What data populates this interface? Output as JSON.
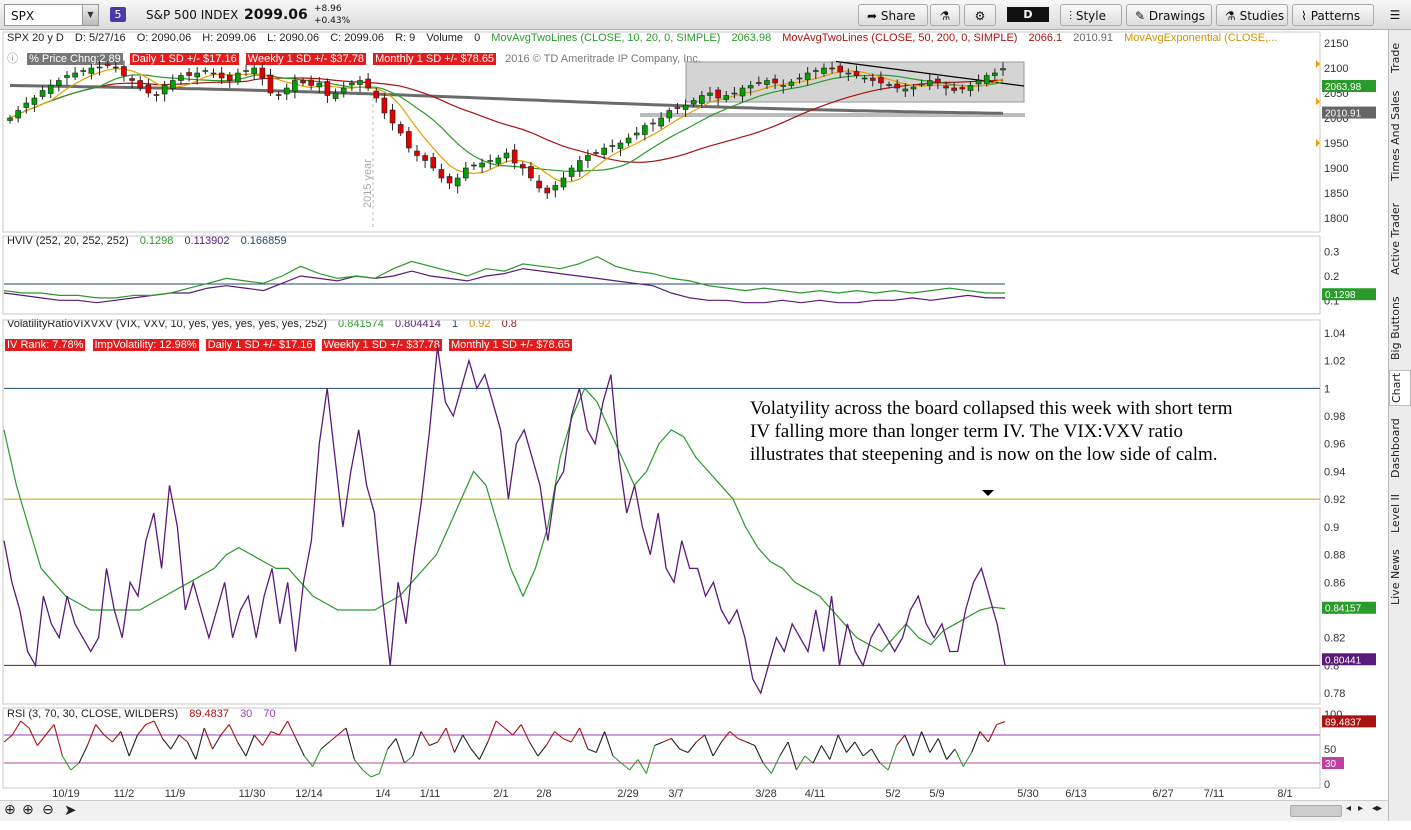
{
  "toolbar": {
    "symbol": "SPX",
    "link_badge": "5",
    "description": "S&P 500 INDEX",
    "last": "2099.06",
    "change": "+8.96",
    "change_pct": "+0.43%",
    "share": "Share",
    "period": "D",
    "style": "Style",
    "drawings": "Drawings",
    "studies": "Studies",
    "patterns": "Patterns"
  },
  "header": {
    "symbol_period": "SPX 20 y D",
    "date": "D: 5/27/16",
    "open": "O: 2090.06",
    "high": "H: 2099.06",
    "low": "L: 2090.06",
    "close": "C: 2099.06",
    "range": "R: 9",
    "volume_label": "Volume",
    "volume": "0",
    "ma1": "MovAvgTwoLines (CLOSE, 10, 20, 0, SIMPLE)",
    "ma1_val": "2063.98",
    "ma2": "MovAvgTwoLines (CLOSE, 50, 200, 0, SIMPLE)",
    "ma2_val1": "2066.1",
    "ma2_val2": "2010.91",
    "ma3": "MovAvgExponential (CLOSE,..."
  },
  "price_row2": {
    "pct_chg": "% Price Chng:2.89",
    "daily": "Daily 1 SD +/- $17.16",
    "weekly": "Weekly 1 SD +/- $37.78",
    "monthly": "Monthly 1 SD +/- $78.65",
    "copyright": "2016 © TD Ameritrade IP Company, Inc.",
    "year_marker": "2015 year"
  },
  "hviv": {
    "label": "HVIV (252, 20, 252, 252)",
    "v1": "0.1298",
    "v2": "0.113902",
    "v3": "0.166859"
  },
  "volratio": {
    "label": "VolatilityRatioVIXVXV (VIX, VXV, 10, yes, yes, yes, yes, yes, 252)",
    "v1": "0.841574",
    "v2": "0.804414",
    "v3": "1",
    "v4": "0.92",
    "v5": "0.8"
  },
  "volratio_row2": {
    "ivrank": "IV Rank: 7.78%",
    "impvol": "ImpVolatility: 12.98%",
    "daily": "Daily 1 SD +/- $17.16",
    "weekly": "Weekly 1 SD +/- $37.78",
    "monthly": "Monthly 1 SD +/- $78.65"
  },
  "rsi": {
    "label": "RSI (3, 70, 30, CLOSE, WILDERS)",
    "v1": "89.4837",
    "v2": "30",
    "v3": "70"
  },
  "annotation": "Volatyility across the board collapsed this week with short term IV falling more than longer term IV.  The VIX:VXV ratio illustrates that steepening and is now on the low side of calm.",
  "right_tabs": [
    "Trade",
    "Times And Sales",
    "Active Trader",
    "Big Buttons",
    "Chart",
    "Dashboard",
    "Level II",
    "Live News"
  ],
  "colors": {
    "up": "#00a000",
    "down": "#e00000",
    "ma_fast": "#e0a000",
    "ma_slow": "#2a9a2a",
    "ma50": "#aa1111",
    "ma200": "#6b6b6b",
    "purple": "#5a1a7a",
    "green": "#2a9a2a"
  },
  "chart_data": [
    {
      "type": "candlestick",
      "title": "SPX 20 y D",
      "x_ticks": [
        "10/19",
        "11/2",
        "11/9",
        "11/30",
        "12/14",
        "1/4",
        "1/11",
        "2/1",
        "2/8",
        "2/29",
        "3/7",
        "3/28",
        "4/11",
        "5/2",
        "5/9",
        "5/30",
        "6/13",
        "6/27",
        "7/11",
        "8/1"
      ],
      "y_ticks": [
        1800,
        1850,
        1900,
        1950,
        2000,
        2050,
        2100,
        2150
      ],
      "ylim": [
        1780,
        2160
      ],
      "close": [
        2000,
        2015,
        2030,
        2040,
        2055,
        2065,
        2075,
        2085,
        2090,
        2095,
        2100,
        2102,
        2105,
        2100,
        2085,
        2075,
        2060,
        2050,
        2045,
        2065,
        2075,
        2085,
        2085,
        2090,
        2095,
        2090,
        2080,
        2075,
        2090,
        2095,
        2100,
        2080,
        2050,
        2045,
        2060,
        2075,
        2070,
        2065,
        2070,
        2045,
        2050,
        2060,
        2070,
        2075,
        2060,
        2040,
        2010,
        1990,
        1970,
        1940,
        1925,
        1915,
        1900,
        1880,
        1870,
        1880,
        1900,
        1905,
        1910,
        1915,
        1920,
        1930,
        1910,
        1900,
        1880,
        1860,
        1850,
        1865,
        1880,
        1900,
        1915,
        1925,
        1930,
        1940,
        1945,
        1950,
        1960,
        1970,
        1985,
        1990,
        2000,
        2015,
        2020,
        2025,
        2035,
        2045,
        2050,
        2040,
        2045,
        2050,
        2060,
        2065,
        2070,
        2075,
        2070,
        2065,
        2072,
        2080,
        2090,
        2095,
        2100,
        2098,
        2092,
        2090,
        2085,
        2080,
        2075,
        2070,
        2065,
        2060,
        2058,
        2062,
        2068,
        2075,
        2070,
        2060,
        2055,
        2058,
        2065,
        2075,
        2085,
        2090,
        2099
      ],
      "series": [
        {
          "name": "MovAvgTwoLines 10",
          "last": 2063.98
        },
        {
          "name": "MovAvgTwoLines 20"
        },
        {
          "name": "MovAvgTwoLines 50",
          "last": 2066.1
        },
        {
          "name": "MovAvgTwoLines 200",
          "last": 2010.91
        }
      ],
      "price_labels": [
        "2063.98",
        "2010.91"
      ]
    },
    {
      "type": "line",
      "title": "HVIV (252, 20, 252, 252)",
      "y_ticks": [
        0.1,
        0.2,
        0.3
      ],
      "ylim": [
        0.06,
        0.34
      ],
      "series": [
        {
          "name": "HV",
          "values": [
            0.14,
            0.13,
            0.13,
            0.12,
            0.12,
            0.11,
            0.11,
            0.12,
            0.12,
            0.13,
            0.15,
            0.17,
            0.19,
            0.18,
            0.17,
            0.2,
            0.24,
            0.21,
            0.19,
            0.2,
            0.19,
            0.23,
            0.26,
            0.24,
            0.22,
            0.2,
            0.23,
            0.22,
            0.25,
            0.24,
            0.23,
            0.25,
            0.28,
            0.24,
            0.22,
            0.21,
            0.19,
            0.18,
            0.16,
            0.15,
            0.14,
            0.15,
            0.14,
            0.13,
            0.14,
            0.13,
            0.14,
            0.13,
            0.14,
            0.13,
            0.14,
            0.15,
            0.14,
            0.13,
            0.13
          ]
        },
        {
          "name": "IV",
          "values": [
            0.13,
            0.12,
            0.11,
            0.1,
            0.1,
            0.09,
            0.1,
            0.11,
            0.12,
            0.13,
            0.13,
            0.15,
            0.16,
            0.15,
            0.14,
            0.17,
            0.2,
            0.19,
            0.18,
            0.2,
            0.19,
            0.2,
            0.22,
            0.2,
            0.19,
            0.18,
            0.2,
            0.21,
            0.23,
            0.22,
            0.21,
            0.2,
            0.19,
            0.18,
            0.17,
            0.16,
            0.13,
            0.11,
            0.1,
            0.1,
            0.09,
            0.09,
            0.1,
            0.09,
            0.1,
            0.09,
            0.09,
            0.1,
            0.1,
            0.11,
            0.1,
            0.11,
            0.12,
            0.11,
            0.11
          ]
        },
        {
          "name": "IV avg",
          "values": [
            0.167,
            0.167
          ]
        }
      ],
      "price_labels": [
        "0.1298"
      ]
    },
    {
      "type": "line",
      "title": "VolatilityRatioVIXVXV (VIX, VXV, 10, yes, yes, yes, yes, yes, 252)",
      "y_ticks": [
        0.78,
        0.8,
        0.82,
        0.84,
        0.86,
        0.88,
        0.9,
        0.92,
        0.94,
        0.96,
        0.98,
        1,
        1.02,
        1.04
      ],
      "ylim": [
        0.775,
        1.045
      ],
      "levels": [
        1.0,
        0.92,
        0.8
      ],
      "series": [
        {
          "name": "ratio",
          "values": [
            0.89,
            0.86,
            0.84,
            0.81,
            0.8,
            0.85,
            0.83,
            0.82,
            0.85,
            0.83,
            0.82,
            0.81,
            0.82,
            0.87,
            0.84,
            0.82,
            0.86,
            0.85,
            0.89,
            0.91,
            0.87,
            0.93,
            0.9,
            0.84,
            0.86,
            0.84,
            0.82,
            0.84,
            0.86,
            0.82,
            0.84,
            0.85,
            0.82,
            0.85,
            0.87,
            0.83,
            0.86,
            0.81,
            0.86,
            0.89,
            0.96,
            1.0,
            0.95,
            0.9,
            0.94,
            0.97,
            0.93,
            0.91,
            0.85,
            0.8,
            0.86,
            0.83,
            0.88,
            0.92,
            0.97,
            1.03,
            0.99,
            0.98,
            1.0,
            1.02,
            1.0,
            1.01,
            0.99,
            0.97,
            0.92,
            0.96,
            0.97,
            0.95,
            0.93,
            0.89,
            0.93,
            0.94,
            0.98,
            1.0,
            0.97,
            0.96,
            0.99,
            1.01,
            0.95,
            0.91,
            0.93,
            0.9,
            0.88,
            0.91,
            0.87,
            0.86,
            0.89,
            0.87,
            0.87,
            0.85,
            0.86,
            0.84,
            0.83,
            0.84,
            0.82,
            0.79,
            0.78,
            0.8,
            0.82,
            0.81,
            0.83,
            0.82,
            0.81,
            0.84,
            0.81,
            0.85,
            0.8,
            0.83,
            0.81,
            0.8,
            0.82,
            0.83,
            0.82,
            0.81,
            0.82,
            0.84,
            0.85,
            0.83,
            0.82,
            0.83,
            0.81,
            0.81,
            0.84,
            0.86,
            0.87,
            0.85,
            0.83,
            0.8
          ]
        },
        {
          "name": "avg",
          "values": [
            0.97,
            0.93,
            0.9,
            0.87,
            0.86,
            0.85,
            0.845,
            0.84,
            0.84,
            0.84,
            0.84,
            0.84,
            0.845,
            0.85,
            0.855,
            0.86,
            0.865,
            0.87,
            0.88,
            0.885,
            0.88,
            0.875,
            0.87,
            0.87,
            0.86,
            0.85,
            0.845,
            0.84,
            0.84,
            0.84,
            0.84,
            0.845,
            0.85,
            0.86,
            0.87,
            0.88,
            0.9,
            0.92,
            0.94,
            0.93,
            0.9,
            0.87,
            0.85,
            0.87,
            0.9,
            0.95,
            0.98,
            1.0,
            0.99,
            0.97,
            0.95,
            0.93,
            0.94,
            0.96,
            0.97,
            0.965,
            0.95,
            0.94,
            0.93,
            0.92,
            0.9,
            0.885,
            0.875,
            0.87,
            0.86,
            0.855,
            0.85,
            0.84,
            0.83,
            0.82,
            0.815,
            0.81,
            0.82,
            0.83,
            0.82,
            0.815,
            0.825,
            0.83,
            0.835,
            0.84,
            0.842,
            0.841
          ]
        }
      ],
      "price_labels": [
        "0.84157",
        "0.80441"
      ]
    },
    {
      "type": "line",
      "title": "RSI (3, 70, 30, CLOSE, WILDERS)",
      "y_ticks": [
        0,
        50,
        100
      ],
      "ylim": [
        0,
        100
      ],
      "levels": [
        70,
        30
      ],
      "series": [
        {
          "name": "RSI",
          "values": [
            60,
            70,
            90,
            80,
            55,
            70,
            85,
            40,
            20,
            30,
            55,
            85,
            70,
            60,
            75,
            40,
            70,
            85,
            90,
            65,
            50,
            70,
            60,
            35,
            80,
            50,
            70,
            85,
            60,
            40,
            70,
            55,
            75,
            70,
            90,
            65,
            40,
            25,
            50,
            60,
            70,
            80,
            35,
            20,
            10,
            15,
            50,
            65,
            30,
            40,
            75,
            55,
            60,
            80,
            45,
            70,
            50,
            35,
            60,
            90,
            80,
            70,
            85,
            60,
            40,
            55,
            75,
            65,
            60,
            80,
            50,
            45,
            75,
            40,
            30,
            20,
            35,
            15,
            55,
            60,
            65,
            50,
            45,
            60,
            70,
            40,
            60,
            75,
            65,
            60,
            55,
            30,
            15,
            40,
            60,
            20,
            40,
            30,
            55,
            35,
            70,
            45,
            60,
            40,
            50,
            30,
            20,
            55,
            70,
            40,
            75,
            45,
            65,
            35,
            50,
            25,
            45,
            75,
            60,
            85,
            89
          ]
        }
      ],
      "price_labels": [
        "89.4837",
        "30"
      ]
    }
  ]
}
